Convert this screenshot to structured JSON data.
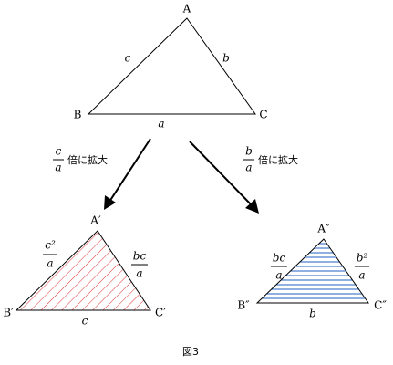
{
  "top_triangle": {
    "vertices": {
      "a": "A",
      "b": "B",
      "c": "C"
    },
    "sides": {
      "ab": "c",
      "ac": "b",
      "bc": "a"
    }
  },
  "arrows": [
    {
      "factor": {
        "numerator": "c",
        "denominator": "a"
      },
      "text": "倍に拡大"
    },
    {
      "factor": {
        "numerator": "b",
        "denominator": "a"
      },
      "text": "倍に拡大"
    }
  ],
  "left_triangle": {
    "vertices": {
      "a": "A′",
      "b": "B′",
      "c": "C′"
    },
    "sides": {
      "ab": {
        "numerator": "c²",
        "denominator": "a"
      },
      "ac": {
        "numerator": "bc",
        "denominator": "a"
      },
      "bc": "c"
    }
  },
  "right_triangle": {
    "vertices": {
      "a": "A″",
      "b": "B″",
      "c": "C″"
    },
    "sides": {
      "ab": {
        "numerator": "bc",
        "denominator": "a"
      },
      "ac": {
        "numerator": "b²",
        "denominator": "a"
      },
      "bc": "b"
    }
  },
  "caption": "図3"
}
